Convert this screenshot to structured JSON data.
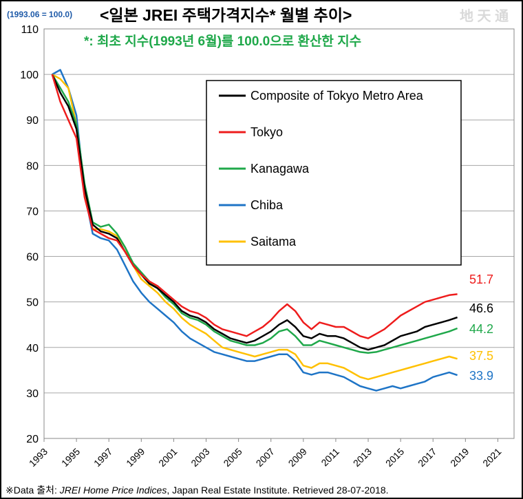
{
  "header": {
    "base_note": "(1993.06 = 100.0)",
    "title": "<일본 JREI 주택가격지수* 월별 추이>",
    "subtitle": "*: 최초 지수(1993년 6월)를 100.0으로 환산한 지수",
    "watermark": "地 天 通"
  },
  "source": {
    "prefix": "※Data 출처: ",
    "publication": "JREI Home Price Indices",
    "rest": ", Japan Real Estate Institute. Retrieved 28-07-2018."
  },
  "chart_data": {
    "type": "line",
    "title": "일본 JREI 주택가격지수 월별 추이",
    "xlabel": "",
    "ylabel": "",
    "xlim": [
      1993,
      2022
    ],
    "ylim": [
      20,
      110
    ],
    "grid": true,
    "legend_position": "upper-right",
    "x_ticks": [
      "1993",
      "1995",
      "1997",
      "1999",
      "2001",
      "2003",
      "2005",
      "2007",
      "2009",
      "2011",
      "2013",
      "2015",
      "2017",
      "2019",
      "2021"
    ],
    "y_ticks": [
      "20",
      "30",
      "40",
      "50",
      "60",
      "70",
      "80",
      "90",
      "100",
      "110"
    ],
    "series": [
      {
        "name": "Composite of Tokyo Metro Area",
        "color": "#000000",
        "last_label": "46.6",
        "x": [
          1993.5,
          1994.0,
          1994.5,
          1995.0,
          1995.5,
          1996.0,
          1996.5,
          1997.0,
          1997.5,
          1998.0,
          1998.5,
          1999.0,
          1999.5,
          2000.0,
          2000.5,
          2001.0,
          2001.5,
          2002.0,
          2002.5,
          2003.0,
          2003.5,
          2004.0,
          2004.5,
          2005.0,
          2005.5,
          2006.0,
          2006.5,
          2007.0,
          2007.5,
          2008.0,
          2008.5,
          2009.0,
          2009.5,
          2010.0,
          2010.5,
          2011.0,
          2011.5,
          2012.0,
          2012.5,
          2013.0,
          2013.5,
          2014.0,
          2014.5,
          2015.0,
          2015.5,
          2016.0,
          2016.5,
          2017.0,
          2017.5,
          2018.0,
          2018.5
        ],
        "y": [
          100.0,
          96.0,
          93.0,
          88.0,
          75.0,
          67.0,
          65.5,
          65.0,
          64.0,
          61.0,
          58.0,
          56.0,
          54.0,
          53.0,
          51.5,
          50.0,
          48.0,
          47.0,
          46.5,
          45.5,
          44.0,
          43.0,
          42.0,
          41.5,
          41.0,
          41.5,
          42.5,
          43.5,
          45.0,
          46.0,
          44.5,
          42.5,
          42.0,
          43.0,
          42.5,
          42.5,
          42.0,
          41.0,
          40.0,
          39.5,
          40.0,
          40.5,
          41.5,
          42.5,
          43.0,
          43.5,
          44.5,
          45.0,
          45.5,
          46.0,
          46.6
        ]
      },
      {
        "name": "Tokyo",
        "color": "#ee1c1c",
        "last_label": "51.7",
        "x": [
          1993.5,
          1994.0,
          1994.5,
          1995.0,
          1995.5,
          1996.0,
          1996.5,
          1997.0,
          1997.5,
          1998.0,
          1998.5,
          1999.0,
          1999.5,
          2000.0,
          2000.5,
          2001.0,
          2001.5,
          2002.0,
          2002.5,
          2003.0,
          2003.5,
          2004.0,
          2004.5,
          2005.0,
          2005.5,
          2006.0,
          2006.5,
          2007.0,
          2007.5,
          2008.0,
          2008.5,
          2009.0,
          2009.5,
          2010.0,
          2010.5,
          2011.0,
          2011.5,
          2012.0,
          2012.5,
          2013.0,
          2013.5,
          2014.0,
          2014.5,
          2015.0,
          2015.5,
          2016.0,
          2016.5,
          2017.0,
          2017.5,
          2018.0,
          2018.5
        ],
        "y": [
          100.0,
          94.0,
          90.0,
          86.0,
          73.0,
          66.0,
          65.0,
          64.0,
          63.5,
          61.0,
          58.0,
          56.0,
          54.5,
          53.5,
          52.0,
          50.5,
          49.0,
          48.0,
          47.5,
          46.5,
          45.0,
          44.0,
          43.5,
          43.0,
          42.5,
          43.5,
          44.5,
          46.0,
          48.0,
          49.5,
          48.0,
          45.5,
          44.0,
          45.5,
          45.0,
          44.5,
          44.5,
          43.5,
          42.5,
          42.0,
          43.0,
          44.0,
          45.5,
          47.0,
          48.0,
          49.0,
          50.0,
          50.5,
          51.0,
          51.5,
          51.7
        ]
      },
      {
        "name": "Kanagawa",
        "color": "#1fa84a",
        "last_label": "44.2",
        "x": [
          1993.5,
          1994.0,
          1994.5,
          1995.0,
          1995.5,
          1996.0,
          1996.5,
          1997.0,
          1997.5,
          1998.0,
          1998.5,
          1999.0,
          1999.5,
          2000.0,
          2000.5,
          2001.0,
          2001.5,
          2002.0,
          2002.5,
          2003.0,
          2003.5,
          2004.0,
          2004.5,
          2005.0,
          2005.5,
          2006.0,
          2006.5,
          2007.0,
          2007.5,
          2008.0,
          2008.5,
          2009.0,
          2009.5,
          2010.0,
          2010.5,
          2011.0,
          2011.5,
          2012.0,
          2012.5,
          2013.0,
          2013.5,
          2014.0,
          2014.5,
          2015.0,
          2015.5,
          2016.0,
          2016.5,
          2017.0,
          2017.5,
          2018.0,
          2018.5
        ],
        "y": [
          100.0,
          97.0,
          94.0,
          89.0,
          76.0,
          67.5,
          66.5,
          67.0,
          65.0,
          62.0,
          58.5,
          56.5,
          54.5,
          53.0,
          51.0,
          49.5,
          47.5,
          46.5,
          46.0,
          45.0,
          43.5,
          42.5,
          41.5,
          41.0,
          40.5,
          40.5,
          41.0,
          42.0,
          43.5,
          44.0,
          42.5,
          40.5,
          40.5,
          41.5,
          41.0,
          40.5,
          40.0,
          39.5,
          39.0,
          38.8,
          39.0,
          39.5,
          40.0,
          40.5,
          41.0,
          41.5,
          42.0,
          42.5,
          43.0,
          43.5,
          44.2
        ]
      },
      {
        "name": "Chiba",
        "color": "#1e74c6",
        "last_label": "33.9",
        "x": [
          1993.5,
          1994.0,
          1994.5,
          1995.0,
          1995.5,
          1996.0,
          1996.5,
          1997.0,
          1997.5,
          1998.0,
          1998.5,
          1999.0,
          1999.5,
          2000.0,
          2000.5,
          2001.0,
          2001.5,
          2002.0,
          2002.5,
          2003.0,
          2003.5,
          2004.0,
          2004.5,
          2005.0,
          2005.5,
          2006.0,
          2006.5,
          2007.0,
          2007.5,
          2008.0,
          2008.5,
          2009.0,
          2009.5,
          2010.0,
          2010.5,
          2011.0,
          2011.5,
          2012.0,
          2012.5,
          2013.0,
          2013.5,
          2014.0,
          2014.5,
          2015.0,
          2015.5,
          2016.0,
          2016.5,
          2017.0,
          2017.5,
          2018.0,
          2018.5
        ],
        "y": [
          100.0,
          101.0,
          97.0,
          91.0,
          74.0,
          65.0,
          64.0,
          63.5,
          61.5,
          58.0,
          54.5,
          52.0,
          50.0,
          48.5,
          47.0,
          45.5,
          43.5,
          42.0,
          41.0,
          40.0,
          39.0,
          38.5,
          38.0,
          37.5,
          37.0,
          37.0,
          37.5,
          38.0,
          38.5,
          38.5,
          37.0,
          34.5,
          34.0,
          34.5,
          34.5,
          34.0,
          33.5,
          32.5,
          31.5,
          31.0,
          30.5,
          31.0,
          31.5,
          31.0,
          31.5,
          32.0,
          32.5,
          33.5,
          34.0,
          34.5,
          33.9
        ]
      },
      {
        "name": "Saitama",
        "color": "#ffc000",
        "last_label": "37.5",
        "x": [
          1993.5,
          1994.0,
          1994.5,
          1995.0,
          1995.5,
          1996.0,
          1996.5,
          1997.0,
          1997.5,
          1998.0,
          1998.5,
          1999.0,
          1999.5,
          2000.0,
          2000.5,
          2001.0,
          2001.5,
          2002.0,
          2002.5,
          2003.0,
          2003.5,
          2004.0,
          2004.5,
          2005.0,
          2005.5,
          2006.0,
          2006.5,
          2007.0,
          2007.5,
          2008.0,
          2008.5,
          2009.0,
          2009.5,
          2010.0,
          2010.5,
          2011.0,
          2011.5,
          2012.0,
          2012.5,
          2013.0,
          2013.5,
          2014.0,
          2014.5,
          2015.0,
          2015.5,
          2016.0,
          2016.5,
          2017.0,
          2017.5,
          2018.0,
          2018.5
        ],
        "y": [
          100.0,
          99.0,
          97.0,
          89.0,
          75.0,
          66.0,
          66.0,
          65.5,
          64.5,
          62.0,
          58.0,
          55.0,
          53.5,
          52.0,
          50.0,
          48.5,
          46.5,
          45.0,
          44.0,
          43.0,
          41.5,
          40.0,
          39.5,
          39.0,
          38.5,
          38.0,
          38.5,
          39.0,
          39.5,
          39.5,
          38.5,
          36.0,
          35.5,
          36.5,
          36.5,
          36.0,
          35.5,
          34.5,
          33.5,
          33.0,
          33.5,
          34.0,
          34.5,
          35.0,
          35.5,
          36.0,
          36.5,
          37.0,
          37.5,
          38.0,
          37.5
        ]
      }
    ]
  }
}
